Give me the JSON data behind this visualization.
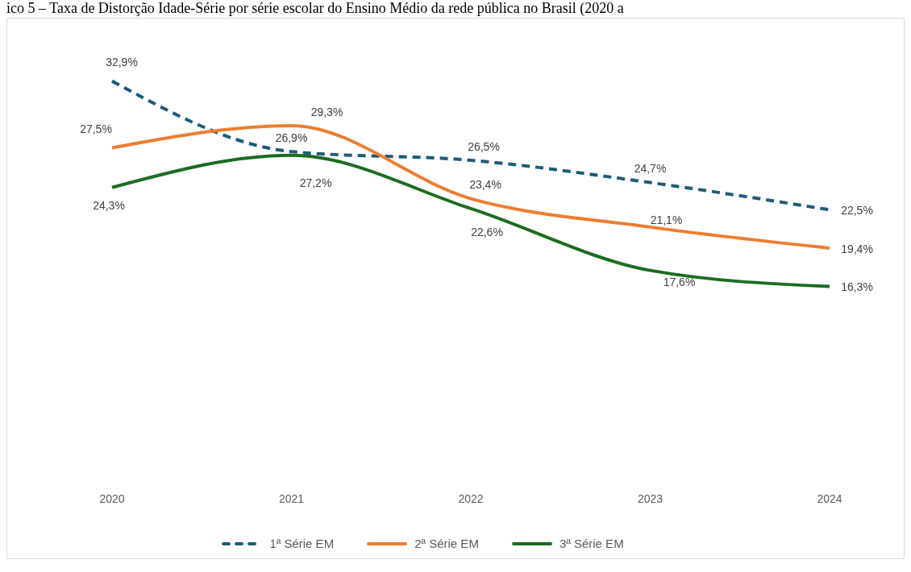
{
  "chart_data": {
    "type": "line",
    "title": "ico 5 – Taxa de Distorção Idade-Série por série escolar do Ensino Médio da rede pública no Brasil (2020 a",
    "categories": [
      "2020",
      "2021",
      "2022",
      "2023",
      "2024"
    ],
    "series": [
      {
        "name": "1ª Série EM",
        "color": "#1f5b7a",
        "line_style": "dashed",
        "values": [
          32.9,
          27.2,
          26.5,
          24.7,
          22.5
        ],
        "value_labels": [
          "32,9%",
          "27,2%",
          "26,5%",
          "24,7%",
          "22,5%"
        ]
      },
      {
        "name": "2ª Série EM",
        "color": "#ed7d31",
        "line_style": "solid",
        "values": [
          27.5,
          29.3,
          23.4,
          21.1,
          19.4
        ],
        "value_labels": [
          "27,5%",
          "29,3%",
          "23,4%",
          "21,1%",
          "19,4%"
        ]
      },
      {
        "name": "3ª Série EM",
        "color": "#1e6b24",
        "line_style": "solid",
        "values": [
          24.3,
          26.9,
          22.6,
          17.6,
          16.3
        ],
        "value_labels": [
          "24,3%",
          "26,9%",
          "22,6%",
          "17,6%",
          "16,3%"
        ]
      }
    ],
    "tick_labels": "x",
    "grid": false,
    "legend": "bottom",
    "marker": "none"
  }
}
